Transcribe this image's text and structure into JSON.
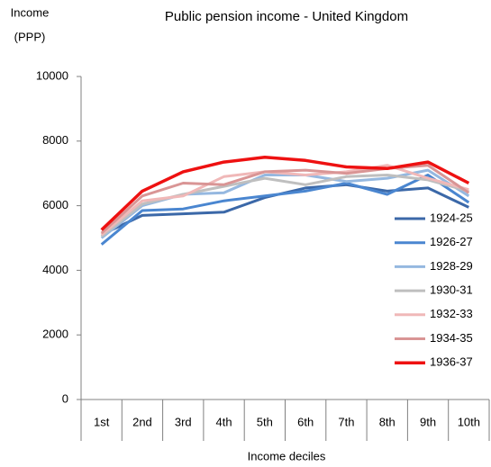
{
  "chart_data": {
    "type": "line",
    "title": "Public pension income - United Kingdom",
    "y_label_lines": [
      "Income",
      "(PPP)"
    ],
    "x_label": "Income deciles",
    "categories": [
      "1st",
      "2nd",
      "3rd",
      "4th",
      "5th",
      "6th",
      "7th",
      "8th",
      "9th",
      "10th"
    ],
    "ylim": [
      0,
      10000
    ],
    "yticks": [
      0,
      2000,
      4000,
      6000,
      8000,
      10000
    ],
    "grid": false,
    "legend_position": "right",
    "series": [
      {
        "name": "1924-25",
        "color": "#3b68a8",
        "values": [
          5100,
          5700,
          5750,
          5800,
          6250,
          6550,
          6650,
          6450,
          6550,
          5950
        ]
      },
      {
        "name": "1926-27",
        "color": "#4a86d0",
        "values": [
          4800,
          5850,
          5900,
          6150,
          6300,
          6450,
          6700,
          6350,
          6950,
          6100
        ]
      },
      {
        "name": "1928-29",
        "color": "#95b8e0",
        "values": [
          5000,
          6000,
          6350,
          6400,
          6950,
          6950,
          6750,
          6850,
          7100,
          6300
        ]
      },
      {
        "name": "1930-31",
        "color": "#bfbfbf",
        "values": [
          5050,
          6050,
          6350,
          6600,
          6850,
          6650,
          6900,
          6950,
          6800,
          6450
        ]
      },
      {
        "name": "1932-33",
        "color": "#f0b8b8",
        "values": [
          5100,
          6150,
          6300,
          6900,
          7050,
          6950,
          7050,
          7250,
          6850,
          6500
        ]
      },
      {
        "name": "1934-35",
        "color": "#d99595",
        "values": [
          5150,
          6300,
          6700,
          6650,
          7050,
          7100,
          7000,
          7150,
          7250,
          6400
        ]
      },
      {
        "name": "1936-37",
        "color": "#ee1111",
        "values": [
          5250,
          6450,
          7050,
          7350,
          7500,
          7400,
          7200,
          7150,
          7350,
          6700
        ]
      }
    ]
  }
}
